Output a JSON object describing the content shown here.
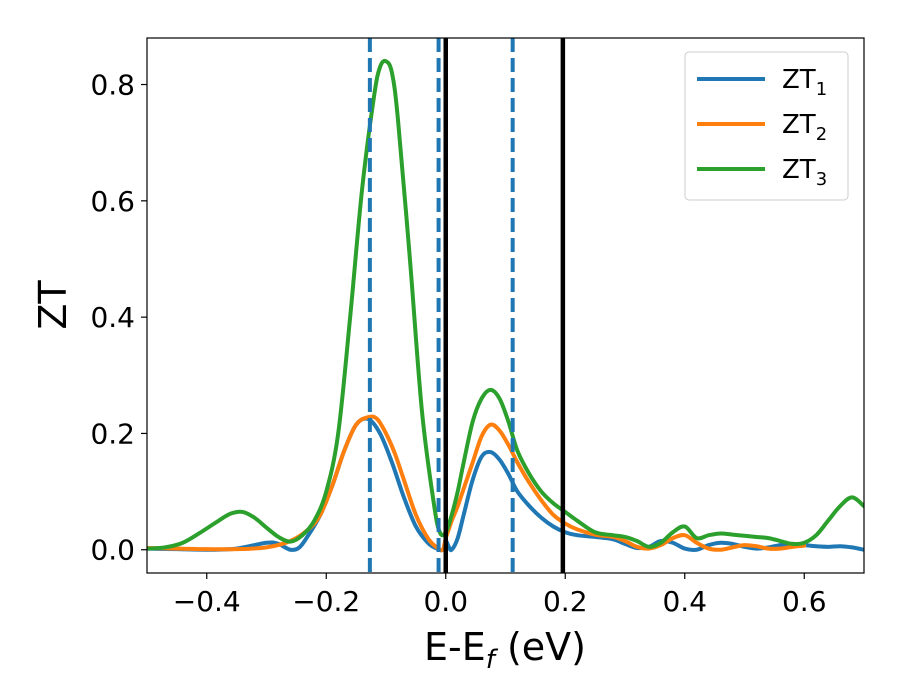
{
  "chart_data": {
    "type": "line",
    "xlabel": "E-E_f (eV)",
    "xlabel_parts": {
      "main": "E-E",
      "sub": "f",
      "tail": " (eV)"
    },
    "ylabel": "ZT",
    "xlim": [
      -0.5,
      0.7
    ],
    "ylim": [
      -0.04,
      0.88
    ],
    "x_ticks": [
      -0.4,
      -0.2,
      0.0,
      0.2,
      0.4,
      0.6
    ],
    "x_tick_labels": [
      "−0.4",
      "−0.2",
      "0.0",
      "0.2",
      "0.4",
      "0.6"
    ],
    "y_ticks": [
      0.0,
      0.2,
      0.4,
      0.6,
      0.8
    ],
    "y_tick_labels": [
      "0.0",
      "0.2",
      "0.4",
      "0.6",
      "0.8"
    ],
    "grid": false,
    "legend_position": "top-right",
    "vertical_lines": [
      {
        "x": -0.127,
        "style": "dashed",
        "color": "#1f77b4"
      },
      {
        "x": -0.012,
        "style": "dashed",
        "color": "#1f77b4"
      },
      {
        "x": 0.112,
        "style": "dashed",
        "color": "#1f77b4"
      },
      {
        "x": 0.0,
        "style": "solid",
        "color": "#000000"
      },
      {
        "x": 0.196,
        "style": "solid",
        "color": "#000000"
      }
    ],
    "series": [
      {
        "name": "ZT_1",
        "name_parts": {
          "main": "ZT",
          "sub": "1"
        },
        "color": "#1f77b4",
        "x": [
          -0.5,
          -0.45,
          -0.4,
          -0.35,
          -0.3,
          -0.28,
          -0.26,
          -0.245,
          -0.23,
          -0.21,
          -0.19,
          -0.17,
          -0.15,
          -0.13,
          -0.11,
          -0.09,
          -0.07,
          -0.05,
          -0.03,
          -0.015,
          -0.005,
          0.0,
          0.005,
          0.01,
          0.02,
          0.03,
          0.045,
          0.06,
          0.075,
          0.09,
          0.105,
          0.12,
          0.14,
          0.16,
          0.18,
          0.2,
          0.22,
          0.25,
          0.28,
          0.3,
          0.32,
          0.34,
          0.36,
          0.38,
          0.4,
          0.42,
          0.44,
          0.46,
          0.48,
          0.5,
          0.52,
          0.54,
          0.56,
          0.58,
          0.6,
          0.62,
          0.64,
          0.66,
          0.68,
          0.7
        ],
        "y": [
          0.002,
          0.001,
          0.0,
          0.002,
          0.012,
          0.01,
          0.0,
          0.004,
          0.025,
          0.06,
          0.11,
          0.17,
          0.215,
          0.225,
          0.2,
          0.15,
          0.09,
          0.04,
          0.012,
          0.002,
          0.0,
          0.015,
          0.005,
          0.0,
          0.02,
          0.06,
          0.12,
          0.16,
          0.168,
          0.155,
          0.13,
          0.1,
          0.075,
          0.055,
          0.04,
          0.03,
          0.025,
          0.022,
          0.018,
          0.01,
          0.003,
          0.005,
          0.015,
          0.012,
          0.002,
          0.0,
          0.008,
          0.012,
          0.01,
          0.005,
          0.002,
          0.004,
          0.008,
          0.01,
          0.008,
          0.006,
          0.005,
          0.006,
          0.004,
          0.0
        ]
      },
      {
        "name": "ZT_2",
        "name_parts": {
          "main": "ZT",
          "sub": "2"
        },
        "color": "#ff7f0e",
        "x": [
          -0.5,
          -0.45,
          -0.4,
          -0.35,
          -0.3,
          -0.26,
          -0.23,
          -0.21,
          -0.19,
          -0.17,
          -0.15,
          -0.13,
          -0.115,
          -0.1,
          -0.085,
          -0.07,
          -0.05,
          -0.03,
          -0.015,
          -0.005,
          0.0,
          0.005,
          0.01,
          0.02,
          0.03,
          0.045,
          0.06,
          0.075,
          0.09,
          0.105,
          0.12,
          0.14,
          0.16,
          0.18,
          0.2,
          0.22,
          0.25,
          0.28,
          0.3,
          0.32,
          0.34,
          0.36,
          0.38,
          0.4,
          0.42,
          0.44,
          0.46,
          0.48,
          0.5,
          0.52,
          0.54,
          0.56,
          0.58,
          0.6
        ],
        "y": [
          0.003,
          0.002,
          0.001,
          0.001,
          0.004,
          0.015,
          0.035,
          0.06,
          0.11,
          0.17,
          0.215,
          0.228,
          0.225,
          0.2,
          0.165,
          0.12,
          0.06,
          0.02,
          0.004,
          0.0,
          0.02,
          0.035,
          0.05,
          0.075,
          0.105,
          0.15,
          0.195,
          0.215,
          0.205,
          0.18,
          0.15,
          0.115,
          0.085,
          0.06,
          0.045,
          0.035,
          0.026,
          0.022,
          0.015,
          0.005,
          0.002,
          0.008,
          0.02,
          0.025,
          0.012,
          0.002,
          0.0,
          0.004,
          0.008,
          0.006,
          0.002,
          0.002,
          0.005,
          0.007
        ]
      },
      {
        "name": "ZT_3",
        "name_parts": {
          "main": "ZT",
          "sub": "3"
        },
        "color": "#2ca02c",
        "x": [
          -0.5,
          -0.47,
          -0.44,
          -0.41,
          -0.38,
          -0.36,
          -0.34,
          -0.32,
          -0.3,
          -0.28,
          -0.26,
          -0.24,
          -0.22,
          -0.2,
          -0.18,
          -0.16,
          -0.14,
          -0.12,
          -0.11,
          -0.1,
          -0.09,
          -0.08,
          -0.06,
          -0.04,
          -0.02,
          -0.01,
          0.0,
          0.01,
          0.02,
          0.03,
          0.045,
          0.06,
          0.075,
          0.09,
          0.105,
          0.12,
          0.14,
          0.16,
          0.18,
          0.2,
          0.22,
          0.25,
          0.28,
          0.3,
          0.32,
          0.34,
          0.36,
          0.38,
          0.4,
          0.42,
          0.44,
          0.46,
          0.48,
          0.5,
          0.52,
          0.54,
          0.56,
          0.58,
          0.6,
          0.62,
          0.64,
          0.66,
          0.68,
          0.7
        ],
        "y": [
          0.002,
          0.004,
          0.012,
          0.03,
          0.05,
          0.062,
          0.065,
          0.055,
          0.038,
          0.022,
          0.014,
          0.025,
          0.05,
          0.1,
          0.2,
          0.4,
          0.62,
          0.78,
          0.83,
          0.84,
          0.82,
          0.74,
          0.5,
          0.24,
          0.08,
          0.03,
          0.03,
          0.06,
          0.1,
          0.15,
          0.22,
          0.26,
          0.275,
          0.26,
          0.22,
          0.17,
          0.13,
          0.1,
          0.08,
          0.065,
          0.05,
          0.03,
          0.025,
          0.022,
          0.015,
          0.005,
          0.012,
          0.03,
          0.04,
          0.02,
          0.025,
          0.028,
          0.026,
          0.024,
          0.022,
          0.02,
          0.015,
          0.01,
          0.012,
          0.025,
          0.05,
          0.075,
          0.09,
          0.075
        ]
      }
    ]
  }
}
